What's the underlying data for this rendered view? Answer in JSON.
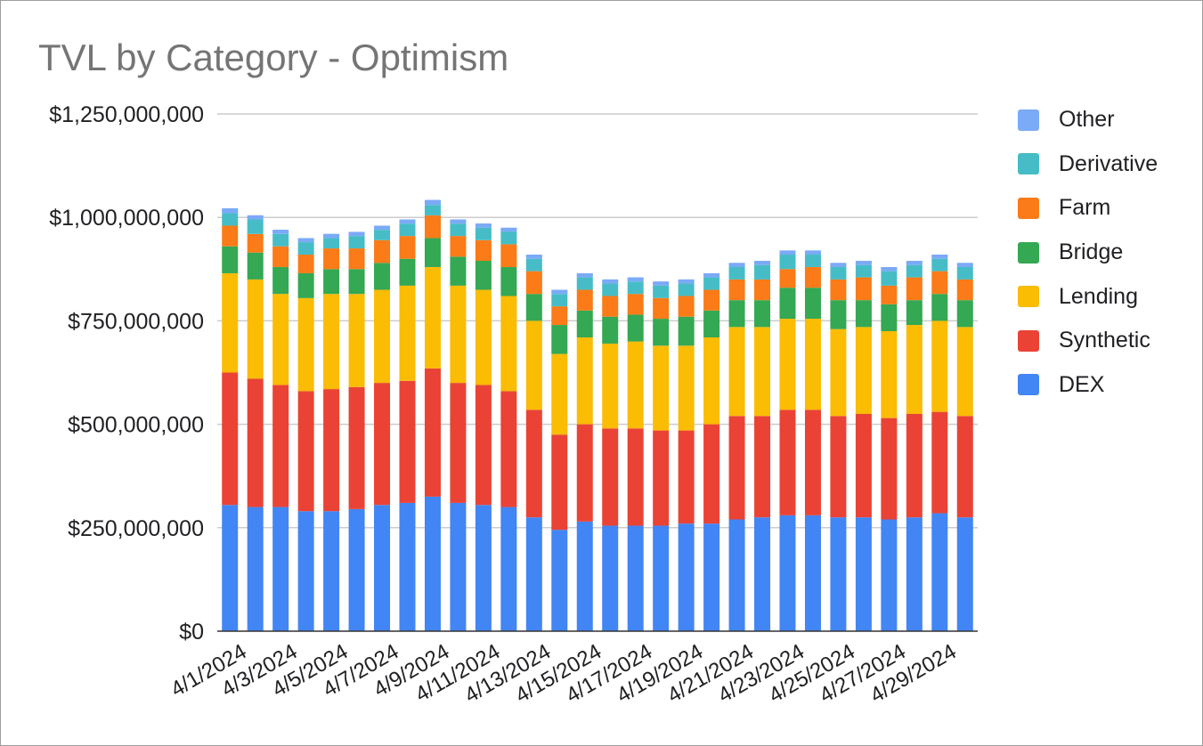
{
  "chart_data": {
    "type": "bar",
    "stacked": true,
    "title": "TVL by Category - Optimism",
    "xlabel": "",
    "ylabel": "",
    "ylim": [
      0,
      1250000000
    ],
    "yticks": [
      "$0",
      "$250,000,000",
      "$500,000,000",
      "$750,000,000",
      "$1,000,000,000",
      "$1,250,000,000"
    ],
    "ytick_values": [
      0,
      250000000,
      500000000,
      750000000,
      1000000000,
      1250000000
    ],
    "grid": true,
    "legend_position": "right",
    "x_tick_labels": [
      "4/1/2024",
      "4/3/2024",
      "4/5/2024",
      "4/7/2024",
      "4/9/2024",
      "4/11/2024",
      "4/13/2024",
      "4/15/2024",
      "4/17/2024",
      "4/19/2024",
      "4/21/2024",
      "4/23/2024",
      "4/25/2024",
      "4/27/2024",
      "4/29/2024"
    ],
    "categories": [
      "4/1/2024",
      "4/2/2024",
      "4/3/2024",
      "4/4/2024",
      "4/5/2024",
      "4/6/2024",
      "4/7/2024",
      "4/8/2024",
      "4/9/2024",
      "4/10/2024",
      "4/11/2024",
      "4/12/2024",
      "4/13/2024",
      "4/14/2024",
      "4/15/2024",
      "4/16/2024",
      "4/17/2024",
      "4/18/2024",
      "4/19/2024",
      "4/20/2024",
      "4/21/2024",
      "4/22/2024",
      "4/23/2024",
      "4/24/2024",
      "4/25/2024",
      "4/26/2024",
      "4/27/2024",
      "4/28/2024",
      "4/29/2024",
      "4/30/2024"
    ],
    "series": [
      {
        "name": "DEX",
        "color": "#4285f4",
        "values": [
          305000000,
          300000000,
          300000000,
          290000000,
          290000000,
          295000000,
          305000000,
          310000000,
          325000000,
          310000000,
          305000000,
          300000000,
          275000000,
          245000000,
          265000000,
          255000000,
          255000000,
          255000000,
          260000000,
          260000000,
          270000000,
          275000000,
          280000000,
          280000000,
          275000000,
          275000000,
          270000000,
          275000000,
          285000000,
          275000000
        ]
      },
      {
        "name": "Synthetic",
        "color": "#ea4335",
        "values": [
          320000000,
          310000000,
          295000000,
          290000000,
          295000000,
          295000000,
          295000000,
          295000000,
          310000000,
          290000000,
          290000000,
          280000000,
          260000000,
          230000000,
          235000000,
          235000000,
          235000000,
          230000000,
          225000000,
          240000000,
          250000000,
          245000000,
          255000000,
          255000000,
          245000000,
          250000000,
          245000000,
          250000000,
          245000000,
          245000000
        ]
      },
      {
        "name": "Lending",
        "color": "#fbbc04",
        "values": [
          240000000,
          240000000,
          220000000,
          225000000,
          230000000,
          225000000,
          225000000,
          230000000,
          245000000,
          235000000,
          230000000,
          230000000,
          215000000,
          195000000,
          210000000,
          205000000,
          210000000,
          205000000,
          205000000,
          210000000,
          215000000,
          215000000,
          220000000,
          220000000,
          210000000,
          210000000,
          210000000,
          215000000,
          220000000,
          215000000
        ]
      },
      {
        "name": "Bridge",
        "color": "#34a853",
        "values": [
          65000000,
          65000000,
          65000000,
          60000000,
          60000000,
          60000000,
          65000000,
          65000000,
          70000000,
          70000000,
          70000000,
          70000000,
          65000000,
          70000000,
          65000000,
          65000000,
          65000000,
          65000000,
          70000000,
          65000000,
          65000000,
          65000000,
          75000000,
          75000000,
          70000000,
          65000000,
          65000000,
          60000000,
          65000000,
          65000000
        ]
      },
      {
        "name": "Farm",
        "color": "#fa7b17",
        "values": [
          50000000,
          45000000,
          50000000,
          45000000,
          50000000,
          50000000,
          55000000,
          55000000,
          55000000,
          50000000,
          50000000,
          55000000,
          55000000,
          45000000,
          50000000,
          50000000,
          50000000,
          50000000,
          50000000,
          50000000,
          50000000,
          50000000,
          45000000,
          50000000,
          50000000,
          55000000,
          45000000,
          55000000,
          55000000,
          50000000
        ]
      },
      {
        "name": "Derivative",
        "color": "#46bdc6",
        "values": [
          30000000,
          35000000,
          30000000,
          30000000,
          25000000,
          30000000,
          25000000,
          30000000,
          25000000,
          30000000,
          30000000,
          30000000,
          30000000,
          30000000,
          30000000,
          30000000,
          30000000,
          30000000,
          30000000,
          30000000,
          30000000,
          35000000,
          35000000,
          30000000,
          30000000,
          30000000,
          35000000,
          30000000,
          30000000,
          30000000
        ]
      },
      {
        "name": "Other",
        "color": "#7baaf7",
        "values": [
          12000000,
          10000000,
          10000000,
          10000000,
          10000000,
          10000000,
          10000000,
          10000000,
          12000000,
          10000000,
          10000000,
          10000000,
          10000000,
          10000000,
          10000000,
          10000000,
          10000000,
          10000000,
          10000000,
          10000000,
          10000000,
          10000000,
          10000000,
          10000000,
          10000000,
          10000000,
          10000000,
          10000000,
          10000000,
          10000000
        ]
      }
    ]
  }
}
